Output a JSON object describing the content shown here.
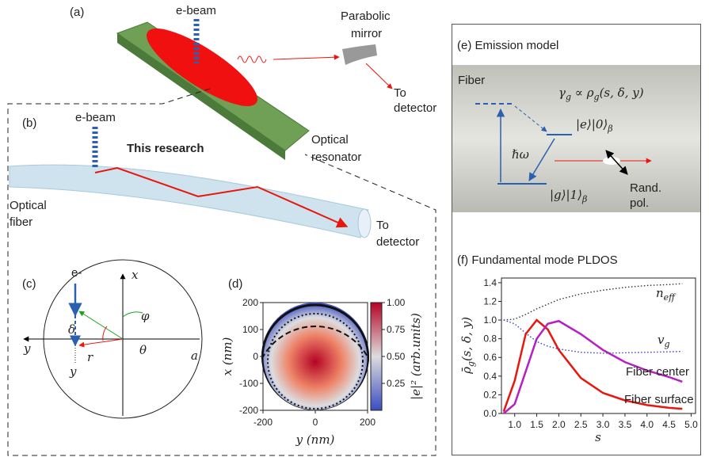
{
  "panel_a": {
    "label": "(a)",
    "ebeam": "e-beam",
    "mirror": [
      "Parabolic",
      "mirror"
    ],
    "detector": [
      "To",
      "detector"
    ],
    "resonator": [
      "Optical",
      "resonator"
    ]
  },
  "panel_b": {
    "label": "(b)",
    "ebeam": "e-beam",
    "title": "This research",
    "fiber": [
      "Optical",
      "fiber"
    ],
    "detector": [
      "To",
      "detector"
    ]
  },
  "panel_c": {
    "label": "(c)",
    "electron": "e-",
    "x": "x",
    "y": "y",
    "phi": "φ",
    "delta": "δ",
    "theta": "θ",
    "r": "r",
    "y_pos": "y",
    "a": "a"
  },
  "panel_e": {
    "title": "(e) Emission model",
    "fiber": "Fiber",
    "formula": [
      "γ",
      "g",
      " ∝ ρ",
      "g",
      "(s, δ, y)"
    ],
    "excited": [
      "|e⟩|0⟩",
      "β"
    ],
    "ground": [
      "|g⟩|1⟩",
      "β"
    ],
    "photon": "ℏω",
    "pol": [
      "Rand.",
      "pol."
    ]
  },
  "panel_f": {
    "title": "(f) Fundamental mode PLDOS"
  },
  "chart_data": [
    {
      "type": "heatmap",
      "label": "(d)",
      "xlabel": "y (nm)",
      "ylabel": "x (nm)",
      "colorbar_label": "|e|² (arb.units)",
      "xlim": [
        -200,
        200
      ],
      "ylim": [
        -200,
        200
      ],
      "xticks": [
        -200,
        0,
        200
      ],
      "yticks": [
        -200,
        -100,
        0,
        100,
        200
      ],
      "clim": [
        0,
        1
      ],
      "cticks": [
        0.25,
        {
          "value": 0.5,
          "label": "0.50"
        },
        0.75,
        {
          "value": 1,
          "label": "1.00"
        }
      ]
    },
    {
      "type": "line",
      "xlabel": "s",
      "ylabel": [
        "ρ̄",
        "g",
        "(s, δ, y)"
      ],
      "x": [
        0.75,
        1.0,
        1.25,
        1.5,
        1.75,
        2.0,
        2.5,
        3.0,
        3.5,
        4.0,
        4.5,
        4.8
      ],
      "series": [
        {
          "name": "Fiber surface",
          "color": "#e8170e",
          "values": [
            0.02,
            0.35,
            0.85,
            1.0,
            0.9,
            0.68,
            0.38,
            0.22,
            0.14,
            0.09,
            0.06,
            0.05
          ]
        },
        {
          "name": "Fiber center",
          "color": "#b61fc0",
          "values": [
            0.0,
            0.1,
            0.45,
            0.8,
            0.96,
            0.99,
            0.85,
            0.68,
            0.55,
            0.46,
            0.39,
            0.34
          ]
        },
        {
          "label": [
            "n",
            "eff"
          ],
          "color": "#333333",
          "dotted": true,
          "values": [
            1.0,
            1.01,
            1.06,
            1.12,
            1.17,
            1.22,
            1.28,
            1.32,
            1.35,
            1.37,
            1.38,
            1.39
          ]
        },
        {
          "label": [
            "v",
            "g"
          ],
          "color": "#3b3bd0",
          "dotted": true,
          "values": [
            1.0,
            0.96,
            0.86,
            0.77,
            0.72,
            0.69,
            0.655,
            0.645,
            0.65,
            0.655,
            0.66,
            0.665
          ]
        }
      ],
      "xlim": [
        0.7,
        5.1
      ],
      "ylim": [
        0,
        1.45
      ],
      "xticks": [
        {
          "value": 1,
          "label": "1.0"
        },
        1.5,
        {
          "value": 2,
          "label": "2.0"
        },
        2.5,
        {
          "value": 3,
          "label": "3.0"
        },
        3.5,
        {
          "value": 4,
          "label": "4.0"
        },
        4.5,
        {
          "value": 5,
          "label": "5.0"
        }
      ],
      "yticks": [
        {
          "value": 0,
          "label": "0.0"
        },
        0.2,
        0.4,
        0.6,
        0.8,
        {
          "value": 1,
          "label": "1.0"
        },
        1.2,
        1.4
      ]
    }
  ]
}
